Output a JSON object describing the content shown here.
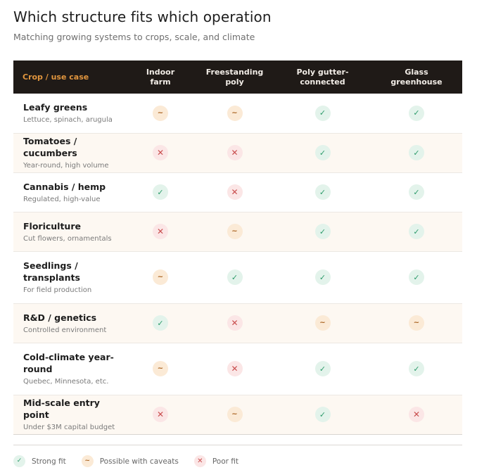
{
  "title": "Which structure fits which operation",
  "subtitle": "Matching growing systems to crops, scale, and climate",
  "table": {
    "header_first": "Crop / use case",
    "columns": [
      [
        "Indoor",
        "farm"
      ],
      [
        "Freestanding",
        "poly"
      ],
      [
        "Poly gutter-",
        "connected"
      ],
      [
        "Glass",
        "greenhouse"
      ]
    ],
    "rows": [
      {
        "lines": [
          "Leafy greens"
        ],
        "sub": "Lettuce, spinach, arugula",
        "fits": [
          "caveat",
          "caveat",
          "strong",
          "strong"
        ]
      },
      {
        "lines": [
          "Tomatoes / cucumbers"
        ],
        "sub": "Year-round, high volume",
        "fits": [
          "poor",
          "poor",
          "strong",
          "strong"
        ]
      },
      {
        "lines": [
          "Cannabis / hemp"
        ],
        "sub": "Regulated, high-value",
        "fits": [
          "strong",
          "poor",
          "strong",
          "strong"
        ]
      },
      {
        "lines": [
          "Floriculture"
        ],
        "sub": "Cut flowers, ornamentals",
        "fits": [
          "poor",
          "caveat",
          "strong",
          "strong"
        ]
      },
      {
        "lines": [
          "Seedlings /",
          "transplants"
        ],
        "sub": "For field production",
        "fits": [
          "caveat",
          "strong",
          "strong",
          "strong"
        ]
      },
      {
        "lines": [
          "R&D / genetics"
        ],
        "sub": "Controlled environment",
        "fits": [
          "strong",
          "poor",
          "caveat",
          "caveat"
        ]
      },
      {
        "lines": [
          "Cold-climate year-",
          "round"
        ],
        "sub": "Quebec, Minnesota, etc.",
        "fits": [
          "caveat",
          "poor",
          "strong",
          "strong"
        ]
      },
      {
        "lines": [
          "Mid-scale entry point"
        ],
        "sub": "Under $3M capital budget",
        "fits": [
          "poor",
          "caveat",
          "strong",
          "poor"
        ]
      }
    ]
  },
  "symbols": {
    "strong": "✓",
    "caveat": "~",
    "poor": "✕"
  },
  "legend": [
    {
      "key": "strong",
      "label": "Strong fit"
    },
    {
      "key": "caveat",
      "label": "Possible with caveats"
    },
    {
      "key": "poor",
      "label": "Poor fit"
    }
  ],
  "colors": {
    "header_bg": "#1f1a17",
    "header_accent": "#e0953e",
    "strong": "#2c9b6a",
    "caveat": "#a8601c",
    "poor": "#c94d4d",
    "alt_row": "#fdf8f2"
  }
}
